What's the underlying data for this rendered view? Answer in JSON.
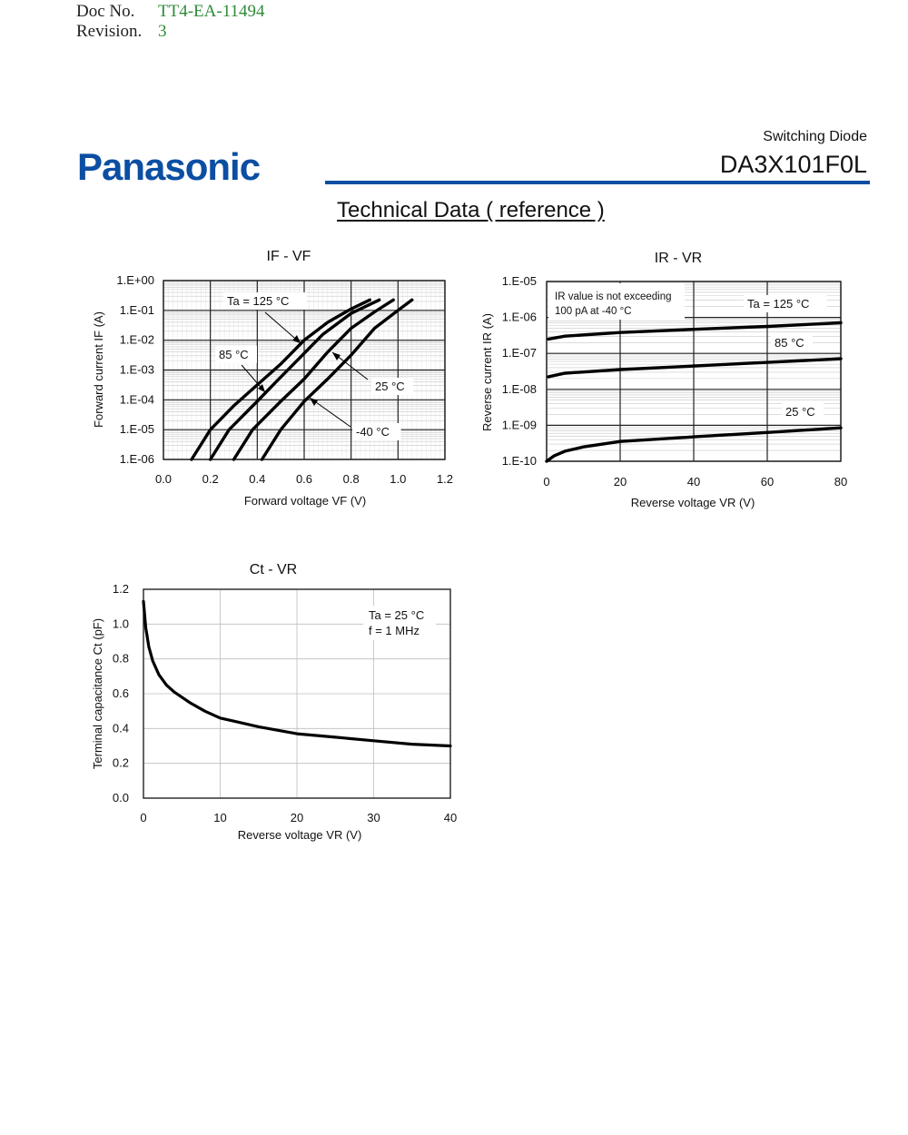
{
  "header": {
    "doc_no_label": "Doc No.",
    "doc_no_value": "TT4-EA-11494",
    "revision_label": "Revision.",
    "revision_value": "3",
    "brand": "Panasonic",
    "product_type": "Switching Diode",
    "part_number": "DA3X101F0L",
    "page_title": "Technical Data ( reference )"
  },
  "colors": {
    "brand_blue": "#0b4ea2",
    "doc_value_green": "#2e8b3a"
  },
  "chart_data": [
    {
      "id": "if_vf",
      "type": "line",
      "title": "IF - VF",
      "xlabel": "Forward voltage VF (V)",
      "ylabel": "Forward current IF (A)",
      "xlim": [
        0.0,
        1.2
      ],
      "ylim_log10": [
        -6,
        0
      ],
      "y_scale": "log",
      "grid": true,
      "x_ticks": [
        "0.0",
        "0.2",
        "0.4",
        "0.6",
        "0.8",
        "1.0",
        "1.2"
      ],
      "y_ticks": [
        "1.E+00",
        "1.E-01",
        "1.E-02",
        "1.E-03",
        "1.E-04",
        "1.E-05",
        "1.E-06"
      ],
      "series": [
        {
          "name": "Ta = 125 °C",
          "points": [
            [
              0.12,
              -6
            ],
            [
              0.2,
              -5
            ],
            [
              0.3,
              -4.2
            ],
            [
              0.4,
              -3.5
            ],
            [
              0.5,
              -2.8
            ],
            [
              0.6,
              -2.0
            ],
            [
              0.7,
              -1.4
            ],
            [
              0.8,
              -0.95
            ],
            [
              0.88,
              -0.65
            ]
          ]
        },
        {
          "name": "85 °C",
          "points": [
            [
              0.2,
              -6
            ],
            [
              0.28,
              -5
            ],
            [
              0.4,
              -4.05
            ],
            [
              0.48,
              -3.4
            ],
            [
              0.58,
              -2.6
            ],
            [
              0.68,
              -1.8
            ],
            [
              0.8,
              -1.1
            ],
            [
              0.92,
              -0.65
            ]
          ]
        },
        {
          "name": "25 °C",
          "points": [
            [
              0.3,
              -6
            ],
            [
              0.38,
              -5
            ],
            [
              0.5,
              -4.05
            ],
            [
              0.6,
              -3.3
            ],
            [
              0.7,
              -2.4
            ],
            [
              0.8,
              -1.6
            ],
            [
              0.9,
              -1.05
            ],
            [
              0.98,
              -0.65
            ]
          ]
        },
        {
          "name": "-40 °C",
          "points": [
            [
              0.42,
              -6
            ],
            [
              0.5,
              -5
            ],
            [
              0.6,
              -4.05
            ],
            [
              0.7,
              -3.3
            ],
            [
              0.8,
              -2.5
            ],
            [
              0.9,
              -1.6
            ],
            [
              1.0,
              -1.0
            ],
            [
              1.06,
              -0.65
            ]
          ]
        }
      ],
      "annotations": [
        "Ta = 125 °C",
        "85 °C",
        "25 °C",
        "-40 °C"
      ]
    },
    {
      "id": "ir_vr",
      "type": "line",
      "title": "IR - VR",
      "xlabel": "Reverse voltage VR (V)",
      "ylabel": "Reverse current IR (A)",
      "xlim": [
        0,
        80
      ],
      "ylim_log10": [
        -10,
        -5
      ],
      "y_scale": "log",
      "grid": true,
      "x_ticks": [
        "0",
        "20",
        "40",
        "60",
        "80"
      ],
      "y_ticks": [
        "1.E-05",
        "1.E-06",
        "1.E-07",
        "1.E-08",
        "1.E-09",
        "1.E-10"
      ],
      "series": [
        {
          "name": "Ta = 125 °C",
          "points": [
            [
              0.5,
              -6.6
            ],
            [
              5,
              -6.52
            ],
            [
              20,
              -6.42
            ],
            [
              40,
              -6.33
            ],
            [
              60,
              -6.25
            ],
            [
              80,
              -6.15
            ]
          ]
        },
        {
          "name": "85 °C",
          "points": [
            [
              0.5,
              -7.65
            ],
            [
              5,
              -7.55
            ],
            [
              20,
              -7.45
            ],
            [
              40,
              -7.35
            ],
            [
              60,
              -7.25
            ],
            [
              80,
              -7.15
            ]
          ]
        },
        {
          "name": "25 °C",
          "points": [
            [
              0,
              -10
            ],
            [
              2,
              -9.85
            ],
            [
              5,
              -9.72
            ],
            [
              10,
              -9.6
            ],
            [
              20,
              -9.45
            ],
            [
              40,
              -9.32
            ],
            [
              60,
              -9.2
            ],
            [
              80,
              -9.07
            ]
          ]
        }
      ],
      "annotations": [
        "IR value is not exceeding",
        "100 pA at -40 °C",
        "Ta = 125 °C",
        "85 °C",
        "25 °C"
      ]
    },
    {
      "id": "ct_vr",
      "type": "line",
      "title": "Ct - VR",
      "xlabel": "Reverse voltage VR (V)",
      "ylabel": "Terminal capacitance Ct (pF)",
      "xlim": [
        0,
        40
      ],
      "ylim": [
        0.0,
        1.2
      ],
      "grid": true,
      "x_ticks": [
        "0",
        "10",
        "20",
        "30",
        "40"
      ],
      "y_ticks": [
        "1.2",
        "1.0",
        "0.8",
        "0.6",
        "0.4",
        "0.2",
        "0.0"
      ],
      "series": [
        {
          "name": "Ta = 25 °C",
          "points": [
            [
              0,
              1.13
            ],
            [
              0.3,
              0.98
            ],
            [
              0.7,
              0.87
            ],
            [
              1.2,
              0.79
            ],
            [
              2,
              0.71
            ],
            [
              3,
              0.65
            ],
            [
              4,
              0.61
            ],
            [
              6,
              0.55
            ],
            [
              8,
              0.5
            ],
            [
              10,
              0.46
            ],
            [
              15,
              0.41
            ],
            [
              20,
              0.37
            ],
            [
              25,
              0.35
            ],
            [
              30,
              0.33
            ],
            [
              35,
              0.31
            ],
            [
              40,
              0.3
            ]
          ]
        }
      ],
      "annotations": [
        "Ta = 25 °C",
        "f = 1 MHz"
      ]
    }
  ]
}
